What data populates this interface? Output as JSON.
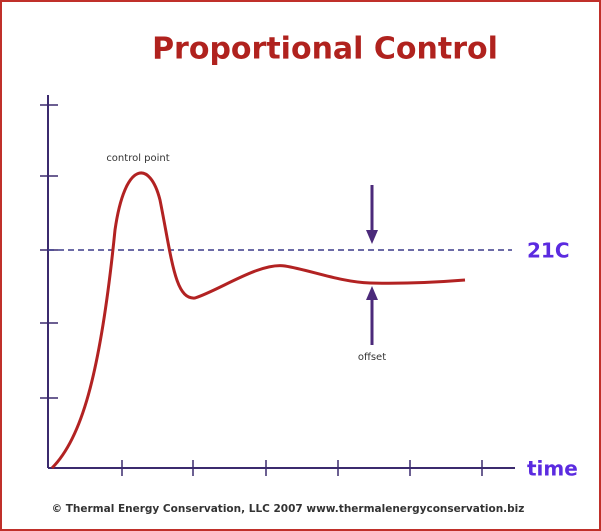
{
  "title": "Proportional Control",
  "labels": {
    "peak": "control point",
    "offset": "offset",
    "setpoint": "21C",
    "x_axis": "time"
  },
  "footer": "© Thermal Energy Conservation, LLC 2007 www.thermalenergyconservation.biz"
}
